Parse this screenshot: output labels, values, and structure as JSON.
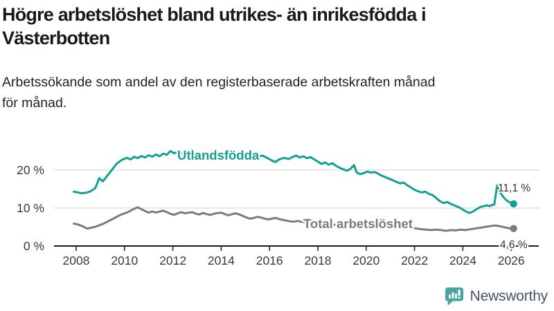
{
  "header": {
    "title_line1": "Högre arbetslöshet bland utrikes- än inrikesfödda i",
    "title_line2": "Västerbotten",
    "subtitle_line1": "Arbetssökande som andel av den registerbaserade arbetskraften månad",
    "subtitle_line2": "för månad."
  },
  "branding": {
    "name": "Newsworthy",
    "icon": "bar-chart-speech-bubble-icon",
    "text_color": "#44546a",
    "icon_color": "#4ba59c"
  },
  "chart_data": {
    "type": "line",
    "title": "Högre arbetslöshet bland utrikes- än inrikesfödda i Västerbotten",
    "subtitle": "Arbetssökande som andel av den registerbaserade arbetskraften månad för månad.",
    "unit": "%",
    "x_ticks": [
      2008,
      2010,
      2012,
      2014,
      2016,
      2018,
      2020,
      2022,
      2024,
      2026
    ],
    "y_ticks": [
      {
        "value": 0,
        "label": "0 %"
      },
      {
        "value": 10,
        "label": "10 %"
      },
      {
        "value": 20,
        "label": "20 %"
      }
    ],
    "x_range": [
      2007.9,
      2026.2
    ],
    "y_range": [
      0,
      27
    ],
    "grid": "horizontal",
    "legend": "inline-series-labels",
    "colors": {
      "grid": "#d9d9d9",
      "axis": "#1c1c1c",
      "tick_label": "#3a3a3a",
      "value_label": "#303030"
    },
    "series": [
      {
        "name": "Utlandsfödda",
        "color": "#13a093",
        "end_label": "11,1 %",
        "end_value": 11.1,
        "points": [
          [
            2007.9,
            14.3
          ],
          [
            2008.0,
            14.2
          ],
          [
            2008.2,
            13.9
          ],
          [
            2008.4,
            14.0
          ],
          [
            2008.6,
            14.4
          ],
          [
            2008.8,
            15.3
          ],
          [
            2008.95,
            17.9
          ],
          [
            2009.1,
            17.0
          ],
          [
            2009.3,
            18.6
          ],
          [
            2009.5,
            20.2
          ],
          [
            2009.7,
            21.8
          ],
          [
            2009.9,
            22.7
          ],
          [
            2010.1,
            23.2
          ],
          [
            2010.25,
            22.8
          ],
          [
            2010.4,
            23.5
          ],
          [
            2010.55,
            23.1
          ],
          [
            2010.7,
            23.7
          ],
          [
            2010.85,
            23.3
          ],
          [
            2011.0,
            23.9
          ],
          [
            2011.15,
            23.5
          ],
          [
            2011.3,
            24.1
          ],
          [
            2011.45,
            23.6
          ],
          [
            2011.6,
            24.3
          ],
          [
            2011.75,
            24.0
          ],
          [
            2011.9,
            25.0
          ],
          [
            2012.05,
            24.4
          ],
          [
            2012.2,
            24.8
          ],
          [
            2012.35,
            24.3
          ],
          [
            2012.5,
            24.7
          ],
          [
            2012.7,
            24.2
          ],
          [
            2012.9,
            24.6
          ],
          [
            2013.1,
            24.1
          ],
          [
            2013.3,
            24.5
          ],
          [
            2013.5,
            24.0
          ],
          [
            2013.7,
            24.4
          ],
          [
            2013.9,
            23.9
          ],
          [
            2014.1,
            24.3
          ],
          [
            2014.3,
            23.8
          ],
          [
            2014.5,
            24.2
          ],
          [
            2014.7,
            23.7
          ],
          [
            2014.9,
            24.1
          ],
          [
            2015.1,
            23.6
          ],
          [
            2015.3,
            24.0
          ],
          [
            2015.5,
            23.4
          ],
          [
            2015.7,
            23.8
          ],
          [
            2015.9,
            23.2
          ],
          [
            2016.1,
            22.5
          ],
          [
            2016.25,
            22.1
          ],
          [
            2016.4,
            22.8
          ],
          [
            2016.6,
            23.2
          ],
          [
            2016.8,
            22.9
          ],
          [
            2016.95,
            23.4
          ],
          [
            2017.1,
            23.8
          ],
          [
            2017.25,
            23.3
          ],
          [
            2017.4,
            23.6
          ],
          [
            2017.55,
            23.1
          ],
          [
            2017.7,
            23.4
          ],
          [
            2017.85,
            22.8
          ],
          [
            2018.0,
            22.2
          ],
          [
            2018.15,
            21.6
          ],
          [
            2018.3,
            22.0
          ],
          [
            2018.45,
            21.4
          ],
          [
            2018.6,
            21.8
          ],
          [
            2018.75,
            21.1
          ],
          [
            2018.9,
            20.6
          ],
          [
            2019.05,
            20.2
          ],
          [
            2019.2,
            19.8
          ],
          [
            2019.35,
            20.3
          ],
          [
            2019.5,
            21.3
          ],
          [
            2019.6,
            19.4
          ],
          [
            2019.75,
            18.9
          ],
          [
            2019.9,
            19.2
          ],
          [
            2020.05,
            19.6
          ],
          [
            2020.2,
            19.3
          ],
          [
            2020.35,
            19.5
          ],
          [
            2020.5,
            19.0
          ],
          [
            2020.65,
            18.5
          ],
          [
            2020.8,
            18.1
          ],
          [
            2020.95,
            17.7
          ],
          [
            2021.1,
            17.3
          ],
          [
            2021.25,
            16.9
          ],
          [
            2021.4,
            16.5
          ],
          [
            2021.55,
            16.7
          ],
          [
            2021.7,
            16.0
          ],
          [
            2021.85,
            15.4
          ],
          [
            2022.0,
            14.8
          ],
          [
            2022.15,
            14.4
          ],
          [
            2022.3,
            14.1
          ],
          [
            2022.45,
            14.3
          ],
          [
            2022.6,
            13.7
          ],
          [
            2022.75,
            13.4
          ],
          [
            2022.9,
            12.6
          ],
          [
            2023.05,
            11.8
          ],
          [
            2023.2,
            11.3
          ],
          [
            2023.35,
            11.6
          ],
          [
            2023.5,
            11.1
          ],
          [
            2023.65,
            10.7
          ],
          [
            2023.8,
            10.3
          ],
          [
            2023.95,
            9.8
          ],
          [
            2024.1,
            9.2
          ],
          [
            2024.25,
            8.7
          ],
          [
            2024.4,
            9.0
          ],
          [
            2024.55,
            9.6
          ],
          [
            2024.7,
            10.2
          ],
          [
            2024.85,
            10.5
          ],
          [
            2025.0,
            10.7
          ],
          [
            2025.1,
            10.5
          ],
          [
            2025.2,
            10.8
          ],
          [
            2025.3,
            10.9
          ],
          [
            2025.42,
            16.0
          ],
          [
            2025.55,
            14.0
          ],
          [
            2025.7,
            12.7
          ],
          [
            2025.85,
            11.8
          ],
          [
            2026.0,
            11.3
          ],
          [
            2026.1,
            11.1
          ]
        ]
      },
      {
        "name": "Total arbetslöshet",
        "color": "#7b7b7b",
        "end_label": "4,6 %",
        "end_value": 4.6,
        "points": [
          [
            2007.9,
            5.9
          ],
          [
            2008.0,
            5.8
          ],
          [
            2008.15,
            5.5
          ],
          [
            2008.3,
            5.1
          ],
          [
            2008.45,
            4.6
          ],
          [
            2008.6,
            4.8
          ],
          [
            2008.75,
            5.0
          ],
          [
            2008.9,
            5.3
          ],
          [
            2009.05,
            5.7
          ],
          [
            2009.2,
            6.1
          ],
          [
            2009.35,
            6.6
          ],
          [
            2009.5,
            7.1
          ],
          [
            2009.65,
            7.6
          ],
          [
            2009.8,
            8.1
          ],
          [
            2009.95,
            8.5
          ],
          [
            2010.1,
            8.8
          ],
          [
            2010.25,
            9.3
          ],
          [
            2010.4,
            9.8
          ],
          [
            2010.55,
            10.2
          ],
          [
            2010.7,
            9.7
          ],
          [
            2010.85,
            9.2
          ],
          [
            2011.0,
            8.8
          ],
          [
            2011.15,
            9.1
          ],
          [
            2011.3,
            8.8
          ],
          [
            2011.45,
            9.1
          ],
          [
            2011.6,
            9.3
          ],
          [
            2011.75,
            8.9
          ],
          [
            2011.9,
            8.5
          ],
          [
            2012.05,
            8.2
          ],
          [
            2012.2,
            8.6
          ],
          [
            2012.35,
            8.9
          ],
          [
            2012.5,
            8.6
          ],
          [
            2012.65,
            8.8
          ],
          [
            2012.8,
            8.9
          ],
          [
            2012.95,
            8.5
          ],
          [
            2013.1,
            8.3
          ],
          [
            2013.25,
            8.7
          ],
          [
            2013.4,
            8.4
          ],
          [
            2013.55,
            8.2
          ],
          [
            2013.7,
            8.5
          ],
          [
            2013.85,
            8.7
          ],
          [
            2014.0,
            8.8
          ],
          [
            2014.15,
            8.4
          ],
          [
            2014.3,
            8.1
          ],
          [
            2014.45,
            8.4
          ],
          [
            2014.6,
            8.6
          ],
          [
            2014.75,
            8.3
          ],
          [
            2014.9,
            7.9
          ],
          [
            2015.05,
            7.5
          ],
          [
            2015.2,
            7.2
          ],
          [
            2015.35,
            7.4
          ],
          [
            2015.5,
            7.7
          ],
          [
            2015.65,
            7.5
          ],
          [
            2015.8,
            7.2
          ],
          [
            2015.95,
            7.0
          ],
          [
            2016.1,
            7.2
          ],
          [
            2016.25,
            7.4
          ],
          [
            2016.4,
            7.1
          ],
          [
            2016.55,
            6.9
          ],
          [
            2016.7,
            6.7
          ],
          [
            2016.85,
            6.5
          ],
          [
            2017.0,
            6.4
          ],
          [
            2017.15,
            6.6
          ],
          [
            2017.3,
            6.4
          ],
          [
            2017.5,
            6.2
          ],
          [
            2017.7,
            6.0
          ],
          [
            2017.9,
            5.9
          ],
          [
            2018.1,
            6.1
          ],
          [
            2018.3,
            5.9
          ],
          [
            2018.5,
            5.7
          ],
          [
            2018.7,
            5.6
          ],
          [
            2018.9,
            5.5
          ],
          [
            2019.1,
            5.6
          ],
          [
            2019.3,
            5.4
          ],
          [
            2019.5,
            5.3
          ],
          [
            2019.7,
            5.2
          ],
          [
            2019.9,
            5.4
          ],
          [
            2020.1,
            5.8
          ],
          [
            2020.3,
            6.3
          ],
          [
            2020.5,
            6.5
          ],
          [
            2020.7,
            6.3
          ],
          [
            2020.9,
            6.1
          ],
          [
            2021.1,
            5.8
          ],
          [
            2021.3,
            5.5
          ],
          [
            2021.5,
            5.2
          ],
          [
            2021.7,
            5.0
          ],
          [
            2021.9,
            4.8
          ],
          [
            2022.1,
            4.6
          ],
          [
            2022.3,
            4.4
          ],
          [
            2022.5,
            4.3
          ],
          [
            2022.7,
            4.2
          ],
          [
            2022.9,
            4.3
          ],
          [
            2023.1,
            4.2
          ],
          [
            2023.3,
            4.0
          ],
          [
            2023.5,
            4.2
          ],
          [
            2023.7,
            4.1
          ],
          [
            2023.9,
            4.3
          ],
          [
            2024.1,
            4.2
          ],
          [
            2024.3,
            4.4
          ],
          [
            2024.5,
            4.6
          ],
          [
            2024.7,
            4.8
          ],
          [
            2024.9,
            5.0
          ],
          [
            2025.1,
            5.2
          ],
          [
            2025.3,
            5.4
          ],
          [
            2025.45,
            5.3
          ],
          [
            2025.6,
            5.1
          ],
          [
            2025.75,
            4.9
          ],
          [
            2025.9,
            4.7
          ],
          [
            2026.1,
            4.6
          ]
        ]
      }
    ]
  }
}
